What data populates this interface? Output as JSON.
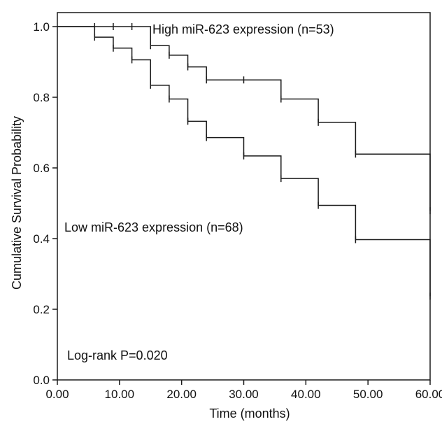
{
  "chart_data": {
    "type": "line",
    "subtype": "kaplan-meier step",
    "xlabel": "Time (months)",
    "ylabel": "Cumulative Survival Probability",
    "xlim": [
      0,
      60
    ],
    "ylim": [
      0,
      1.0
    ],
    "x_ticks": [
      "0.00",
      "10.00",
      "20.00",
      "30.00",
      "40.00",
      "50.00",
      "60.00"
    ],
    "y_ticks": [
      "0.0",
      "0.2",
      "0.4",
      "0.6",
      "0.8",
      "1.0"
    ],
    "grid": false,
    "line_color": "#1a1a1a",
    "series": [
      {
        "name": "High miR-623 expression (n=53)",
        "steps": [
          [
            0,
            1.0
          ],
          [
            15,
            0.946
          ],
          [
            18,
            0.919
          ],
          [
            21,
            0.886
          ],
          [
            24,
            0.849
          ],
          [
            36,
            0.795
          ],
          [
            42,
            0.729
          ],
          [
            48,
            0.639
          ],
          [
            60,
            0.479
          ]
        ],
        "censored": [
          [
            6,
            1.0
          ],
          [
            9,
            1.0
          ],
          [
            12,
            1.0
          ],
          [
            15,
            0.946
          ],
          [
            18,
            0.919
          ],
          [
            21,
            0.886
          ],
          [
            24,
            0.849
          ],
          [
            30,
            0.849
          ],
          [
            36,
            0.795
          ],
          [
            42,
            0.729
          ],
          [
            48,
            0.639
          ],
          [
            60,
            0.479
          ]
        ]
      },
      {
        "name": "Low miR-623 expression (n=68)",
        "steps": [
          [
            0,
            1.0
          ],
          [
            6,
            0.97
          ],
          [
            9,
            0.939
          ],
          [
            12,
            0.906
          ],
          [
            15,
            0.834
          ],
          [
            18,
            0.795
          ],
          [
            21,
            0.732
          ],
          [
            24,
            0.686
          ],
          [
            30,
            0.634
          ],
          [
            36,
            0.57
          ],
          [
            42,
            0.494
          ],
          [
            48,
            0.397
          ],
          [
            60,
            0.237
          ]
        ],
        "censored": [
          [
            6,
            0.97
          ],
          [
            9,
            0.939
          ],
          [
            12,
            0.906
          ],
          [
            15,
            0.834
          ],
          [
            18,
            0.795
          ],
          [
            21,
            0.732
          ],
          [
            24,
            0.686
          ],
          [
            30,
            0.634
          ],
          [
            36,
            0.57
          ],
          [
            42,
            0.494
          ],
          [
            48,
            0.397
          ],
          [
            60,
            0.237
          ]
        ]
      }
    ],
    "annotations": {
      "high_label": "High miR-623 expression (n=53)",
      "low_label": "Low miR-623 expression (n=68)",
      "pvalue": "Log-rank P=0.020"
    }
  }
}
